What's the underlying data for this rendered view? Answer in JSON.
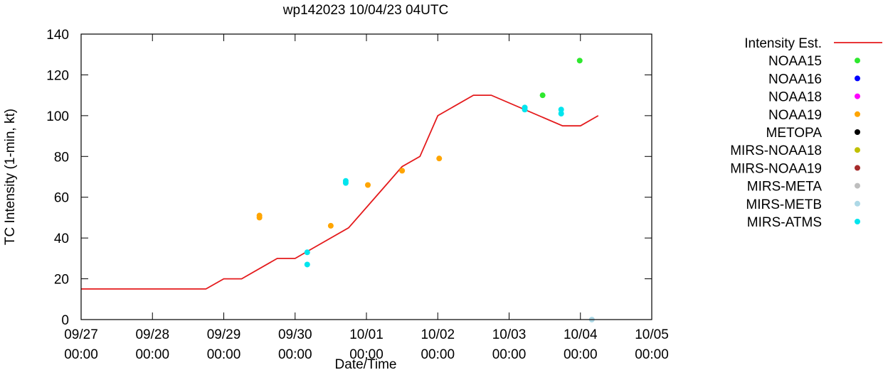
{
  "chart_data": {
    "type": "line",
    "title": "wp142023 10/04/23 04UTC",
    "xlabel": "Date/Time",
    "ylabel": "TC Intensity (1-min, kt)",
    "xlim": [
      0,
      8
    ],
    "x_unit": "days since 09/27 00:00",
    "ylim": [
      0,
      140
    ],
    "y_ticks": [
      0,
      20,
      40,
      60,
      80,
      100,
      120,
      140
    ],
    "x_ticks": [
      {
        "x": 0,
        "date": "09/27",
        "time": "00:00"
      },
      {
        "x": 1,
        "date": "09/28",
        "time": "00:00"
      },
      {
        "x": 2,
        "date": "09/29",
        "time": "00:00"
      },
      {
        "x": 3,
        "date": "09/30",
        "time": "00:00"
      },
      {
        "x": 4,
        "date": "10/01",
        "time": "00:00"
      },
      {
        "x": 5,
        "date": "10/02",
        "time": "00:00"
      },
      {
        "x": 6,
        "date": "10/03",
        "time": "00:00"
      },
      {
        "x": 7,
        "date": "10/04",
        "time": "00:00"
      },
      {
        "x": 8,
        "date": "10/05",
        "time": "00:00"
      }
    ],
    "legend_position": "right",
    "series": [
      {
        "name": "Intensity Est.",
        "kind": "line",
        "color": "#e41a1c",
        "points": [
          [
            0,
            15
          ],
          [
            1.75,
            15
          ],
          [
            2,
            20
          ],
          [
            2.25,
            20
          ],
          [
            2.75,
            30
          ],
          [
            3,
            30
          ],
          [
            3.25,
            35
          ],
          [
            3.75,
            45
          ],
          [
            4.25,
            65
          ],
          [
            4.5,
            75
          ],
          [
            4.75,
            80
          ],
          [
            5,
            100
          ],
          [
            5.5,
            110
          ],
          [
            5.75,
            110
          ],
          [
            6.75,
            95
          ],
          [
            7,
            95
          ],
          [
            7.25,
            100
          ]
        ]
      },
      {
        "name": "NOAA15",
        "kind": "points",
        "color": "#2ee82e",
        "points": [
          [
            6.47,
            110
          ],
          [
            6.99,
            127
          ]
        ]
      },
      {
        "name": "NOAA16",
        "kind": "points",
        "color": "#0000ff",
        "points": []
      },
      {
        "name": "NOAA18",
        "kind": "points",
        "color": "#ff00ff",
        "points": []
      },
      {
        "name": "NOAA19",
        "kind": "points",
        "color": "#ffa500",
        "points": [
          [
            2.5,
            51
          ],
          [
            2.5,
            50
          ],
          [
            3.5,
            46
          ],
          [
            4.02,
            66
          ],
          [
            4.5,
            73
          ],
          [
            5.02,
            79
          ]
        ]
      },
      {
        "name": "METOPA",
        "kind": "points",
        "color": "#000000",
        "points": []
      },
      {
        "name": "MIRS-NOAA18",
        "kind": "points",
        "color": "#c0c000",
        "points": []
      },
      {
        "name": "MIRS-NOAA19",
        "kind": "points",
        "color": "#a52a2a",
        "points": []
      },
      {
        "name": "MIRS-META",
        "kind": "points",
        "color": "#bebebe",
        "points": []
      },
      {
        "name": "MIRS-METB",
        "kind": "points",
        "color": "#add8e6",
        "points": [
          [
            7.16,
            0
          ]
        ]
      },
      {
        "name": "MIRS-ATMS",
        "kind": "points",
        "color": "#00e5ee",
        "points": [
          [
            3.17,
            33
          ],
          [
            3.17,
            27
          ],
          [
            3.71,
            68
          ],
          [
            3.71,
            67
          ],
          [
            6.22,
            104
          ],
          [
            6.22,
            103
          ],
          [
            6.73,
            103
          ],
          [
            6.73,
            101
          ]
        ]
      }
    ]
  }
}
